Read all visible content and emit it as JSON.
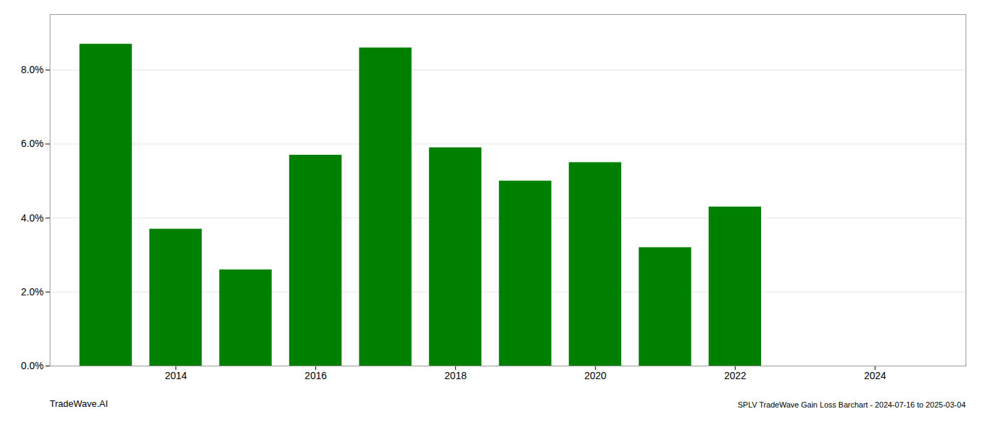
{
  "chart_data": {
    "type": "bar",
    "x": [
      2013,
      2014,
      2015,
      2016,
      2017,
      2018,
      2019,
      2020,
      2021,
      2022,
      2023
    ],
    "values": [
      0.087,
      0.037,
      0.026,
      0.057,
      0.086,
      0.059,
      0.05,
      0.055,
      0.032,
      0.043,
      0.0
    ],
    "color": "#008000",
    "xlim": [
      2012.2,
      2025.3
    ],
    "xticks": [
      2014,
      2016,
      2018,
      2020,
      2022,
      2024
    ],
    "ylim": [
      0,
      0.095
    ],
    "yticks": [
      {
        "value": 0.0,
        "label": "0.0%"
      },
      {
        "value": 0.02,
        "label": "2.0%"
      },
      {
        "value": 0.04,
        "label": "4.0%"
      },
      {
        "value": 0.06,
        "label": "6.0%"
      },
      {
        "value": 0.08,
        "label": "8.0%"
      }
    ],
    "grid": true,
    "annotations": [
      "TradeWave.AI",
      "SPLV TradeWave Gain Loss Barchart - 2024-07-16 to 2025-03-04"
    ]
  }
}
